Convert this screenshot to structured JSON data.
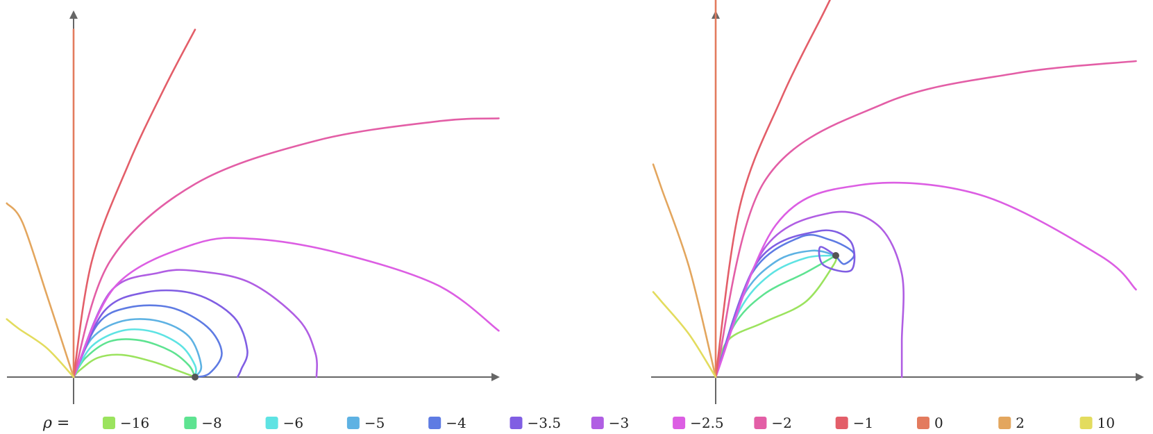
{
  "chart_data": {
    "type": "line",
    "legend": {
      "title": "ρ =",
      "placement": "bottom",
      "entries": [
        {
          "label": "−16",
          "color": "#9be35e"
        },
        {
          "label": "−8",
          "color": "#5ee391"
        },
        {
          "label": "−6",
          "color": "#5ee3e3"
        },
        {
          "label": "−5",
          "color": "#5eb2e3"
        },
        {
          "label": "−4",
          "color": "#5e7be3"
        },
        {
          "label": "−3.5",
          "color": "#805ee3"
        },
        {
          "label": "−3",
          "color": "#b05ee3"
        },
        {
          "label": "−2.5",
          "color": "#dc5ee3"
        },
        {
          "label": "−2",
          "color": "#e35ea6"
        },
        {
          "label": "−1",
          "color": "#e35e69"
        },
        {
          "label": "0",
          "color": "#e37b5e"
        },
        {
          "label": "2",
          "color": "#e3a65e"
        },
        {
          "label": "10",
          "color": "#e3dc5e"
        }
      ]
    },
    "panels": [
      {
        "name": "left",
        "grid": false,
        "marked_point": [
          1,
          0
        ],
        "curves": [
          {
            "label": "−16",
            "points": [
              [
                0,
                0
              ],
              [
                0.05,
                0.07
              ],
              [
                0.2,
                0.2
              ],
              [
                0.4,
                0.23
              ],
              [
                0.65,
                0.16
              ],
              [
                0.85,
                0.07
              ],
              [
                1,
                0
              ]
            ]
          },
          {
            "label": "−8",
            "points": [
              [
                0,
                0
              ],
              [
                0.1,
                0.2
              ],
              [
                0.3,
                0.37
              ],
              [
                0.55,
                0.38
              ],
              [
                0.8,
                0.27
              ],
              [
                0.95,
                0.12
              ],
              [
                1,
                0
              ]
            ]
          },
          {
            "label": "−6",
            "points": [
              [
                0,
                0
              ],
              [
                0.15,
                0.32
              ],
              [
                0.4,
                0.48
              ],
              [
                0.65,
                0.47
              ],
              [
                0.88,
                0.33
              ],
              [
                1,
                0.12
              ],
              [
                1,
                0
              ]
            ]
          },
          {
            "label": "−5",
            "points": [
              [
                0,
                0
              ],
              [
                0.15,
                0.4
              ],
              [
                0.4,
                0.58
              ],
              [
                0.7,
                0.58
              ],
              [
                0.95,
                0.42
              ],
              [
                1.05,
                0.12
              ],
              [
                1,
                0
              ]
            ]
          },
          {
            "label": "−4",
            "points": [
              [
                0,
                0
              ],
              [
                0.2,
                0.55
              ],
              [
                0.45,
                0.72
              ],
              [
                0.8,
                0.72
              ],
              [
                1.1,
                0.52
              ],
              [
                1.22,
                0.25
              ],
              [
                1.12,
                0.04
              ],
              [
                1,
                0
              ]
            ]
          },
          {
            "label": "−3.5",
            "points": [
              [
                0,
                0
              ],
              [
                0.25,
                0.68
              ],
              [
                0.6,
                0.88
              ],
              [
                1,
                0.86
              ],
              [
                1.32,
                0.62
              ],
              [
                1.43,
                0.28
              ],
              [
                1.38,
                0.08
              ],
              [
                1.35,
                0
              ]
            ]
          },
          {
            "label": "−3",
            "points": [
              [
                0,
                0
              ],
              [
                0.3,
                0.88
              ],
              [
                0.7,
                1.08
              ],
              [
                1,
                1.1
              ],
              [
                1.45,
                0.98
              ],
              [
                1.85,
                0.6
              ],
              [
                1.99,
                0.25
              ],
              [
                2.0,
                0
              ]
            ]
          },
          {
            "label": "−2.5",
            "points": [
              [
                0,
                0
              ],
              [
                0.35,
                0.95
              ],
              [
                1,
                1.38
              ],
              [
                1.5,
                1.43
              ],
              [
                2.2,
                1.28
              ],
              [
                3,
                0.95
              ],
              [
                3.5,
                0.48
              ]
            ]
          },
          {
            "label": "−2",
            "points": [
              [
                0,
                0
              ],
              [
                0.3,
                1.2
              ],
              [
                1,
                2.0
              ],
              [
                2,
                2.45
              ],
              [
                3,
                2.65
              ],
              [
                3.5,
                2.68
              ]
            ]
          },
          {
            "label": "−1",
            "points": [
              [
                0,
                0
              ],
              [
                0.15,
                1.2
              ],
              [
                0.45,
                2.2
              ],
              [
                0.75,
                3.0
              ],
              [
                1,
                3.6
              ]
            ]
          },
          {
            "label": "0",
            "points": [
              [
                0,
                0
              ],
              [
                0,
                1.5
              ],
              [
                0,
                3.6
              ]
            ]
          },
          {
            "label": "2",
            "points": [
              [
                0,
                0
              ],
              [
                -0.22,
                0.85
              ],
              [
                -0.42,
                1.6
              ],
              [
                -0.55,
                1.8
              ]
            ]
          },
          {
            "label": "10",
            "points": [
              [
                0,
                0
              ],
              [
                -0.22,
                0.3
              ],
              [
                -0.45,
                0.5
              ],
              [
                -0.55,
                0.6
              ]
            ]
          }
        ]
      },
      {
        "name": "right",
        "grid": false,
        "marked_point": [
          1,
          1
        ],
        "curves": [
          {
            "label": "−16",
            "points": [
              [
                0,
                0
              ],
              [
                0.1,
                0.3
              ],
              [
                0.4,
                0.45
              ],
              [
                0.75,
                0.62
              ],
              [
                0.98,
                0.92
              ],
              [
                1,
                1
              ]
            ]
          },
          {
            "label": "−8",
            "points": [
              [
                0,
                0
              ],
              [
                0.15,
                0.42
              ],
              [
                0.4,
                0.68
              ],
              [
                0.75,
                0.86
              ],
              [
                1,
                1
              ]
            ]
          },
          {
            "label": "−6",
            "points": [
              [
                0,
                0
              ],
              [
                0.2,
                0.55
              ],
              [
                0.45,
                0.84
              ],
              [
                0.75,
                0.98
              ],
              [
                1,
                1
              ]
            ]
          },
          {
            "label": "−5",
            "points": [
              [
                0,
                0
              ],
              [
                0.22,
                0.65
              ],
              [
                0.5,
                0.95
              ],
              [
                0.8,
                1.04
              ],
              [
                1,
                1
              ]
            ]
          },
          {
            "label": "−4",
            "points": [
              [
                0,
                0
              ],
              [
                0.3,
                0.85
              ],
              [
                0.7,
                1.15
              ],
              [
                0.95,
                1.13
              ],
              [
                1.15,
                1.02
              ],
              [
                1.07,
                0.93
              ],
              [
                1,
                1
              ]
            ]
          },
          {
            "label": "−3.5",
            "points": [
              [
                0,
                0
              ],
              [
                0.35,
                0.95
              ],
              [
                0.85,
                1.2
              ],
              [
                1.12,
                1.12
              ],
              [
                1.13,
                0.88
              ],
              [
                0.9,
                0.92
              ],
              [
                0.87,
                1.07
              ],
              [
                1,
                1
              ]
            ]
          },
          {
            "label": "−3",
            "points": [
              [
                0,
                0
              ],
              [
                0.4,
                1.05
              ],
              [
                0.95,
                1.35
              ],
              [
                1.35,
                1.25
              ],
              [
                1.55,
                0.85
              ],
              [
                1.55,
                0.3
              ],
              [
                1.55,
                0
              ]
            ]
          },
          {
            "label": "−2.5",
            "points": [
              [
                0,
                0
              ],
              [
                0.5,
                1.25
              ],
              [
                1.2,
                1.58
              ],
              [
                2.2,
                1.5
              ],
              [
                3.2,
                1.0
              ],
              [
                3.5,
                0.72
              ]
            ]
          },
          {
            "label": "−2",
            "points": [
              [
                0,
                0
              ],
              [
                0.4,
                1.6
              ],
              [
                1.4,
                2.25
              ],
              [
                2.5,
                2.5
              ],
              [
                3.5,
                2.6
              ]
            ]
          },
          {
            "label": "−1",
            "points": [
              [
                0,
                0
              ],
              [
                0.2,
                1.4
              ],
              [
                0.55,
                2.3
              ],
              [
                0.9,
                3.0
              ],
              [
                1,
                3.2
              ]
            ]
          },
          {
            "label": "0",
            "points": [
              [
                0,
                0
              ],
              [
                0,
                1.5
              ],
              [
                0,
                3.2
              ]
            ]
          },
          {
            "label": "2",
            "points": [
              [
                0,
                0
              ],
              [
                -0.22,
                0.9
              ],
              [
                -0.45,
                1.55
              ],
              [
                -0.52,
                1.75
              ]
            ]
          },
          {
            "label": "10",
            "points": [
              [
                0,
                0
              ],
              [
                -0.22,
                0.35
              ],
              [
                -0.45,
                0.62
              ],
              [
                -0.52,
                0.7
              ]
            ]
          }
        ]
      }
    ]
  }
}
